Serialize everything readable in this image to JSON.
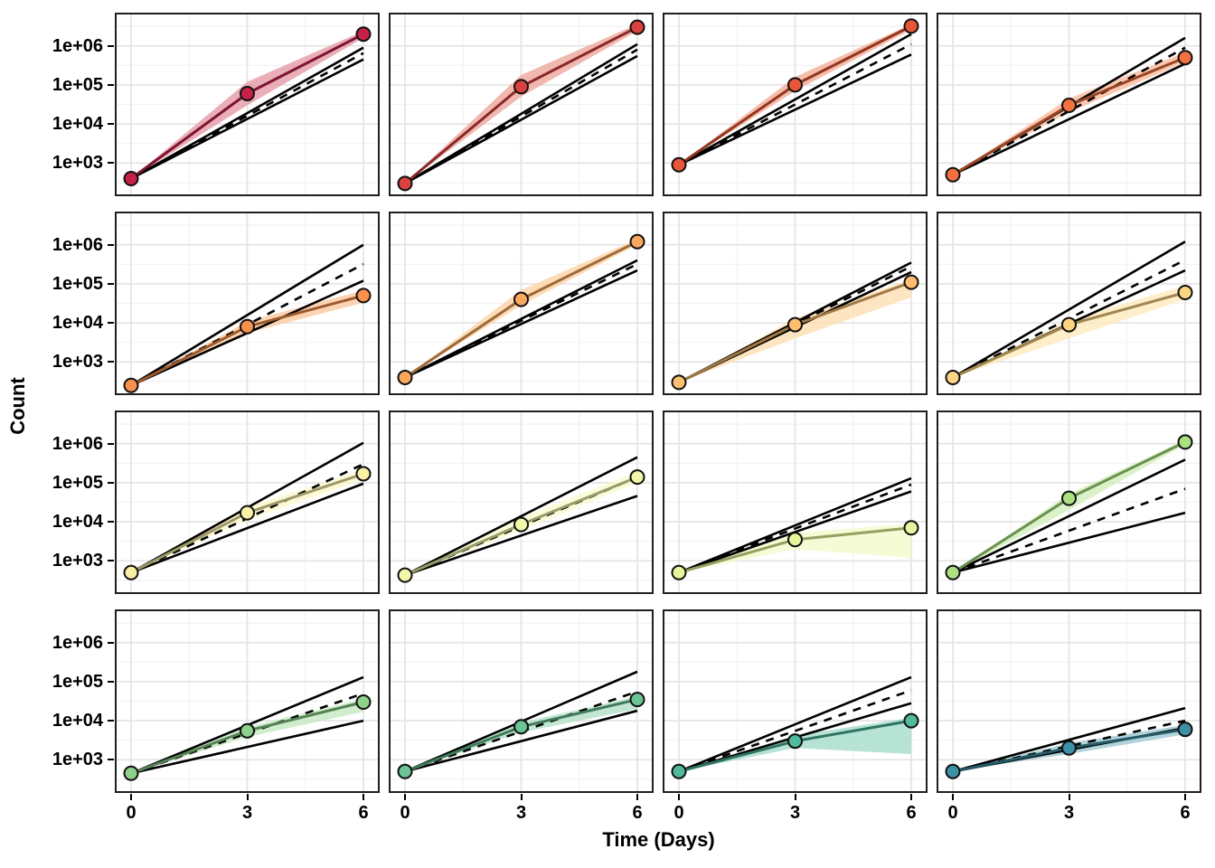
{
  "axes": {
    "y_title": "Count",
    "x_title": "Time (Days)",
    "y_ticks": [
      "1e+06",
      "1e+05",
      "1e+04",
      "1e+03"
    ],
    "y_tick_exponents": [
      6,
      5,
      4,
      3
    ],
    "x_ticks": [
      "0",
      "3",
      "6"
    ],
    "x_tick_values": [
      0,
      3,
      6
    ],
    "y_log_range": [
      2.15,
      6.85
    ],
    "x_range": [
      0,
      6
    ]
  },
  "grid": {
    "x_major": [
      0,
      3,
      6
    ],
    "x_minor": [
      1.5,
      4.5
    ],
    "y_major_exponents": [
      3,
      4,
      5,
      6
    ],
    "y_minor_exponents": [
      2.5,
      3.5,
      4.5,
      5.5,
      6.5
    ],
    "major_color": "#e3e3e3",
    "minor_color": "#f2f2f2"
  },
  "style": {
    "panel_border_color": "#1f1f1f",
    "fan_line_color": "#000000",
    "point_stroke_color": "#111111"
  },
  "chart_data": {
    "type": "line",
    "title": "",
    "xlabel": "Time (Days)",
    "ylabel": "Count",
    "x_days": [
      0,
      3,
      6
    ],
    "facet_grid": {
      "rows": 4,
      "cols": 4
    },
    "facets": [
      {
        "row": 1,
        "col": 1,
        "point_color": "#C62048",
        "ribbon_color": "#E59AA6",
        "line_color": "#7C1430",
        "counts": [
          400,
          60000,
          2000000
        ],
        "fan_end": {
          "upper": 900000,
          "mid": 650000,
          "lower": 450000
        },
        "ribbon": {
          "t3": [
            30000,
            120000
          ],
          "t6": [
            1600000,
            2400000
          ]
        }
      },
      {
        "row": 1,
        "col": 2,
        "point_color": "#DA4140",
        "ribbon_color": "#EDA69C",
        "line_color": "#8A2828",
        "counts": [
          300,
          90000,
          3000000
        ],
        "fan_end": {
          "upper": 1100000,
          "mid": 800000,
          "lower": 550000
        },
        "ribbon": {
          "t3": [
            50000,
            180000
          ],
          "t6": [
            2400000,
            3600000
          ]
        }
      },
      {
        "row": 1,
        "col": 3,
        "point_color": "#E85538",
        "ribbon_color": "#F3AE97",
        "line_color": "#93351F",
        "counts": [
          900,
          100000,
          3200000
        ],
        "fan_end": {
          "upper": 2000000,
          "mid": 1100000,
          "lower": 600000
        },
        "ribbon": {
          "t3": [
            70000,
            160000
          ],
          "t6": [
            2600000,
            3600000
          ]
        }
      },
      {
        "row": 1,
        "col": 4,
        "point_color": "#F4713F",
        "ribbon_color": "#F9BB9C",
        "line_color": "#9A4526",
        "counts": [
          500,
          30000,
          500000
        ],
        "fan_end": {
          "upper": 1600000,
          "mid": 900000,
          "lower": 350000
        },
        "ribbon": {
          "t3": [
            20000,
            45000
          ],
          "t6": [
            380000,
            680000
          ]
        }
      },
      {
        "row": 2,
        "col": 1,
        "point_color": "#F9904C",
        "ribbon_color": "#FBC9A0",
        "line_color": "#9E5A2D",
        "counts": [
          250,
          8000,
          50000
        ],
        "fan_end": {
          "upper": 1000000,
          "mid": 320000,
          "lower": 120000
        },
        "ribbon": {
          "t3": [
            5500,
            11000
          ],
          "t6": [
            33000,
            68000
          ]
        }
      },
      {
        "row": 2,
        "col": 2,
        "point_color": "#FBA85F",
        "ribbon_color": "#FDD5A8",
        "line_color": "#9F6A3A",
        "counts": [
          400,
          40000,
          1200000
        ],
        "fan_end": {
          "upper": 400000,
          "mid": 320000,
          "lower": 220000
        },
        "ribbon": {
          "t3": [
            28000,
            70000
          ],
          "t6": [
            1000000,
            1400000
          ]
        }
      },
      {
        "row": 2,
        "col": 3,
        "point_color": "#FDBE70",
        "ribbon_color": "#FEDFB2",
        "line_color": "#A07846",
        "counts": [
          300,
          9000,
          110000
        ],
        "fan_end": {
          "upper": 350000,
          "mid": 280000,
          "lower": 200000
        },
        "ribbon": {
          "t3": [
            4000,
            13000
          ],
          "t6": [
            45000,
            130000
          ]
        }
      },
      {
        "row": 2,
        "col": 4,
        "point_color": "#FDD582",
        "ribbon_color": "#FEEABC",
        "line_color": "#A08751",
        "counts": [
          400,
          9000,
          60000
        ],
        "fan_end": {
          "upper": 1200000,
          "mid": 410000,
          "lower": 220000
        },
        "ribbon": {
          "t3": [
            4000,
            12000
          ],
          "t6": [
            40000,
            90000
          ]
        }
      },
      {
        "row": 3,
        "col": 1,
        "point_color": "#F9F0A5",
        "ribbon_color": "#FCF7CE",
        "line_color": "#9E9866",
        "counts": [
          500,
          17000,
          170000
        ],
        "fan_end": {
          "upper": 1050000,
          "mid": 300000,
          "lower": 95000
        },
        "ribbon": {
          "t3": [
            11000,
            24000
          ],
          "t6": [
            120000,
            220000
          ]
        }
      },
      {
        "row": 3,
        "col": 2,
        "point_color": "#F3F7A8",
        "ribbon_color": "#F9FBD0",
        "line_color": "#9A9C6A",
        "counts": [
          430,
          8500,
          140000
        ],
        "fan_end": {
          "upper": 450000,
          "mid": 140000,
          "lower": 46000
        },
        "ribbon": {
          "t3": [
            6000,
            13000
          ],
          "t6": [
            100000,
            190000
          ]
        }
      },
      {
        "row": 3,
        "col": 3,
        "point_color": "#E7F59C",
        "ribbon_color": "#F1FACA",
        "line_color": "#92A060",
        "counts": [
          500,
          3500,
          7000
        ],
        "fan_end": {
          "upper": 130000,
          "mid": 90000,
          "lower": 60000
        },
        "ribbon": {
          "t3": [
            2000,
            5200
          ],
          "t6": [
            1200,
            9000
          ]
        }
      },
      {
        "row": 3,
        "col": 4,
        "point_color": "#ABE083",
        "ribbon_color": "#D2EFBC",
        "line_color": "#6B9150",
        "counts": [
          500,
          40000,
          1100000
        ],
        "fan_end": {
          "upper": 390000,
          "mid": 70000,
          "lower": 17000
        },
        "ribbon": {
          "t3": [
            20000,
            52000
          ],
          "t6": [
            950000,
            1250000
          ]
        }
      },
      {
        "row": 4,
        "col": 1,
        "point_color": "#8ED18B",
        "ribbon_color": "#C4E8C1",
        "line_color": "#578255",
        "counts": [
          450,
          5500,
          30000
        ],
        "fan_end": {
          "upper": 130000,
          "mid": 50000,
          "lower": 10000
        },
        "ribbon": {
          "t3": [
            3800,
            7000
          ],
          "t6": [
            17000,
            36000
          ]
        }
      },
      {
        "row": 4,
        "col": 2,
        "point_color": "#6CC494",
        "ribbon_color": "#B3E0C7",
        "line_color": "#417B5B",
        "counts": [
          500,
          7000,
          35000
        ],
        "fan_end": {
          "upper": 180000,
          "mid": 56000,
          "lower": 18000
        },
        "ribbon": {
          "t3": [
            5000,
            9000
          ],
          "t6": [
            20000,
            42000
          ]
        }
      },
      {
        "row": 4,
        "col": 3,
        "point_color": "#50B99E",
        "ribbon_color": "#A5DCCB",
        "line_color": "#2F7463",
        "counts": [
          500,
          3000,
          10000
        ],
        "fan_end": {
          "upper": 130000,
          "mid": 60000,
          "lower": 28000
        },
        "ribbon": {
          "t3": [
            2000,
            4200
          ],
          "t6": [
            1400,
            12000
          ]
        }
      },
      {
        "row": 4,
        "col": 4,
        "point_color": "#3D91A4",
        "ribbon_color": "#9CC8D3",
        "line_color": "#255A66",
        "counts": [
          500,
          2000,
          6000
        ],
        "fan_end": {
          "upper": 21000,
          "mid": 10000,
          "lower": 6500
        },
        "ribbon": {
          "t3": [
            1400,
            2700
          ],
          "t6": [
            4500,
            7800
          ]
        }
      }
    ]
  }
}
